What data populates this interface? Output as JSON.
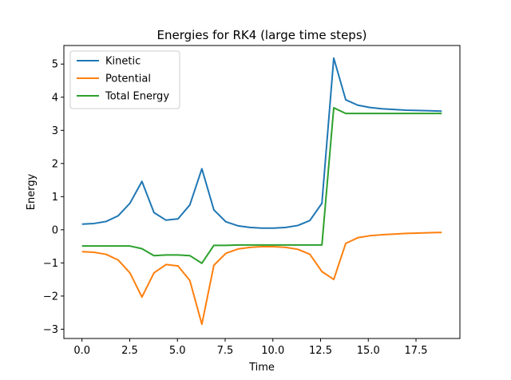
{
  "chart_data": {
    "type": "line",
    "title": "Energies for RK4 (large time steps)",
    "xlabel": "Time",
    "ylabel": "Energy",
    "xlim": [
      -0.95,
      19.8
    ],
    "ylim": [
      -3.28,
      5.56
    ],
    "xticks": [
      0.0,
      2.5,
      5.0,
      7.5,
      10.0,
      12.5,
      15.0,
      17.5
    ],
    "xtick_labels": [
      "0.0",
      "2.5",
      "5.0",
      "7.5",
      "10.0",
      "12.5",
      "15.0",
      "17.5"
    ],
    "yticks": [
      -3,
      -2,
      -1,
      0,
      1,
      2,
      3,
      4,
      5
    ],
    "ytick_labels": [
      "−3",
      "−2",
      "−1",
      "0",
      "1",
      "2",
      "3",
      "4",
      "5"
    ],
    "grid": false,
    "legend_position": "top-left",
    "x": [
      0.0,
      0.63,
      1.26,
      1.89,
      2.51,
      3.14,
      3.77,
      4.4,
      5.03,
      5.65,
      6.28,
      6.91,
      7.54,
      8.17,
      8.8,
      9.42,
      10.05,
      10.68,
      11.31,
      11.94,
      12.57,
      13.19,
      13.82,
      14.45,
      15.08,
      15.71,
      16.34,
      16.96,
      17.59,
      18.22,
      18.85
    ],
    "series": [
      {
        "name": "Kinetic",
        "color": "#1f77b4",
        "values": [
          0.17,
          0.19,
          0.25,
          0.42,
          0.8,
          1.46,
          0.52,
          0.29,
          0.33,
          0.75,
          1.84,
          0.6,
          0.24,
          0.12,
          0.07,
          0.05,
          0.05,
          0.07,
          0.13,
          0.28,
          0.8,
          5.18,
          3.92,
          3.76,
          3.69,
          3.65,
          3.63,
          3.61,
          3.6,
          3.59,
          3.58
        ]
      },
      {
        "name": "Potential",
        "color": "#ff7f0e",
        "values": [
          -0.66,
          -0.68,
          -0.74,
          -0.91,
          -1.3,
          -2.03,
          -1.3,
          -1.05,
          -1.09,
          -1.53,
          -2.85,
          -1.07,
          -0.71,
          -0.58,
          -0.53,
          -0.51,
          -0.51,
          -0.53,
          -0.59,
          -0.74,
          -1.26,
          -1.5,
          -0.41,
          -0.24,
          -0.18,
          -0.15,
          -0.13,
          -0.11,
          -0.1,
          -0.09,
          -0.08
        ]
      },
      {
        "name": "Total Energy",
        "color": "#2ca02c",
        "values": [
          -0.49,
          -0.49,
          -0.49,
          -0.49,
          -0.49,
          -0.57,
          -0.78,
          -0.76,
          -0.76,
          -0.78,
          -1.01,
          -0.47,
          -0.47,
          -0.46,
          -0.46,
          -0.46,
          -0.46,
          -0.46,
          -0.46,
          -0.46,
          -0.46,
          3.68,
          3.51,
          3.51,
          3.51,
          3.51,
          3.51,
          3.51,
          3.51,
          3.51,
          3.51
        ]
      }
    ]
  }
}
